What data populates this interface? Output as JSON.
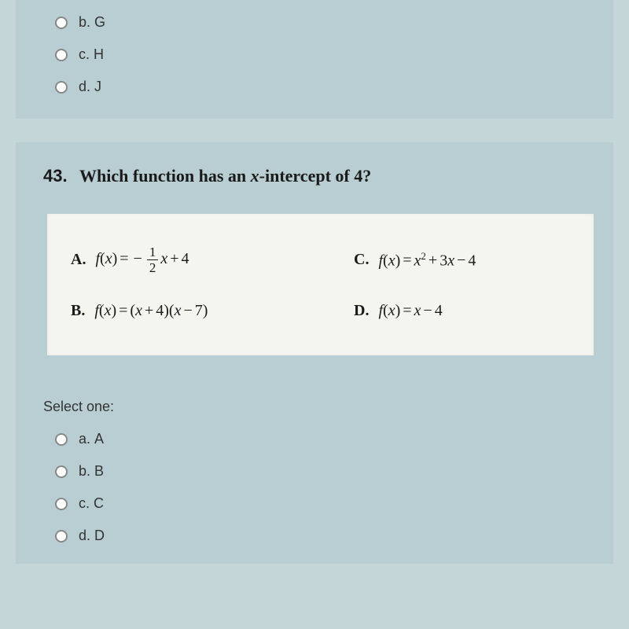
{
  "colors": {
    "page_bg": "#c5d6d9",
    "panel_bg": "#b8ced2",
    "answer_bg": "#f5f5f0",
    "text": "#1a1a1a",
    "radio_border": "#888888"
  },
  "top_options": [
    {
      "letter": "b.",
      "label": "G"
    },
    {
      "letter": "c.",
      "label": "H"
    },
    {
      "letter": "d.",
      "label": "J"
    }
  ],
  "question": {
    "number": "43.",
    "text": "Which function has an x-intercept of 4?",
    "answers": {
      "A": {
        "letter": "A.",
        "display": "f(x) = -(1/2)x + 4"
      },
      "B": {
        "letter": "B.",
        "display": "f(x) = (x + 4)(x − 7)"
      },
      "C": {
        "letter": "C.",
        "display": "f(x) = x² + 3x − 4"
      },
      "D": {
        "letter": "D.",
        "display": "f(x) = x − 4"
      }
    }
  },
  "select": {
    "label": "Select one:",
    "options": [
      {
        "letter": "a.",
        "label": "A"
      },
      {
        "letter": "b.",
        "label": "B"
      },
      {
        "letter": "c.",
        "label": "C"
      },
      {
        "letter": "d.",
        "label": "D"
      }
    ]
  },
  "typography": {
    "question_fontsize": 22,
    "answer_fontsize": 20,
    "option_fontsize": 18
  }
}
